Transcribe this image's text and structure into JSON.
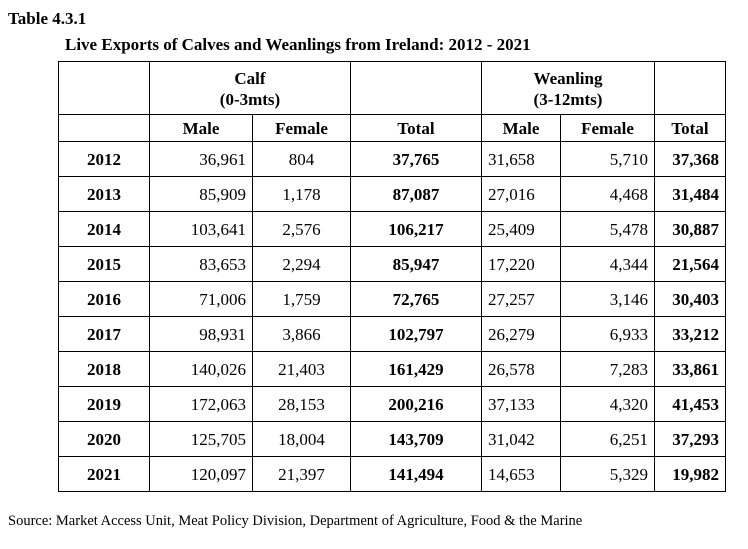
{
  "table_label": "Table 4.3.1",
  "caption": "Live Exports of Calves and Weanlings from Ireland: 2012 - 2021",
  "groups": {
    "calf": {
      "line1": "Calf",
      "line2": "(0-3mts)"
    },
    "weanling": {
      "line1": "Weanling",
      "line2": "(3-12mts)"
    }
  },
  "columns": [
    "Male",
    "Female",
    "Total",
    "Male",
    "Female",
    "Total"
  ],
  "rows": [
    {
      "year": "2012",
      "calf_male": "36,961",
      "calf_female": "804",
      "calf_total": "37,765",
      "wean_male": "31,658",
      "wean_female": "5,710",
      "wean_total": "37,368"
    },
    {
      "year": "2013",
      "calf_male": "85,909",
      "calf_female": "1,178",
      "calf_total": "87,087",
      "wean_male": "27,016",
      "wean_female": "4,468",
      "wean_total": "31,484"
    },
    {
      "year": "2014",
      "calf_male": "103,641",
      "calf_female": "2,576",
      "calf_total": "106,217",
      "wean_male": "25,409",
      "wean_female": "5,478",
      "wean_total": "30,887"
    },
    {
      "year": "2015",
      "calf_male": "83,653",
      "calf_female": "2,294",
      "calf_total": "85,947",
      "wean_male": "17,220",
      "wean_female": "4,344",
      "wean_total": "21,564"
    },
    {
      "year": "2016",
      "calf_male": "71,006",
      "calf_female": "1,759",
      "calf_total": "72,765",
      "wean_male": "27,257",
      "wean_female": "3,146",
      "wean_total": "30,403"
    },
    {
      "year": "2017",
      "calf_male": "98,931",
      "calf_female": "3,866",
      "calf_total": "102,797",
      "wean_male": "26,279",
      "wean_female": "6,933",
      "wean_total": "33,212"
    },
    {
      "year": "2018",
      "calf_male": "140,026",
      "calf_female": "21,403",
      "calf_total": "161,429",
      "wean_male": "26,578",
      "wean_female": "7,283",
      "wean_total": "33,861"
    },
    {
      "year": "2019",
      "calf_male": "172,063",
      "calf_female": "28,153",
      "calf_total": "200,216",
      "wean_male": "37,133",
      "wean_female": "4,320",
      "wean_total": "41,453"
    },
    {
      "year": "2020",
      "calf_male": "125,705",
      "calf_female": "18,004",
      "calf_total": "143,709",
      "wean_male": "31,042",
      "wean_female": "6,251",
      "wean_total": "37,293"
    },
    {
      "year": "2021",
      "calf_male": "120,097",
      "calf_female": "21,397",
      "calf_total": "141,494",
      "wean_male": "14,653",
      "wean_female": "5,329",
      "wean_total": "19,982"
    }
  ],
  "source": "Source: Market Access Unit, Meat Policy Division, Department of Agriculture, Food & the Marine"
}
